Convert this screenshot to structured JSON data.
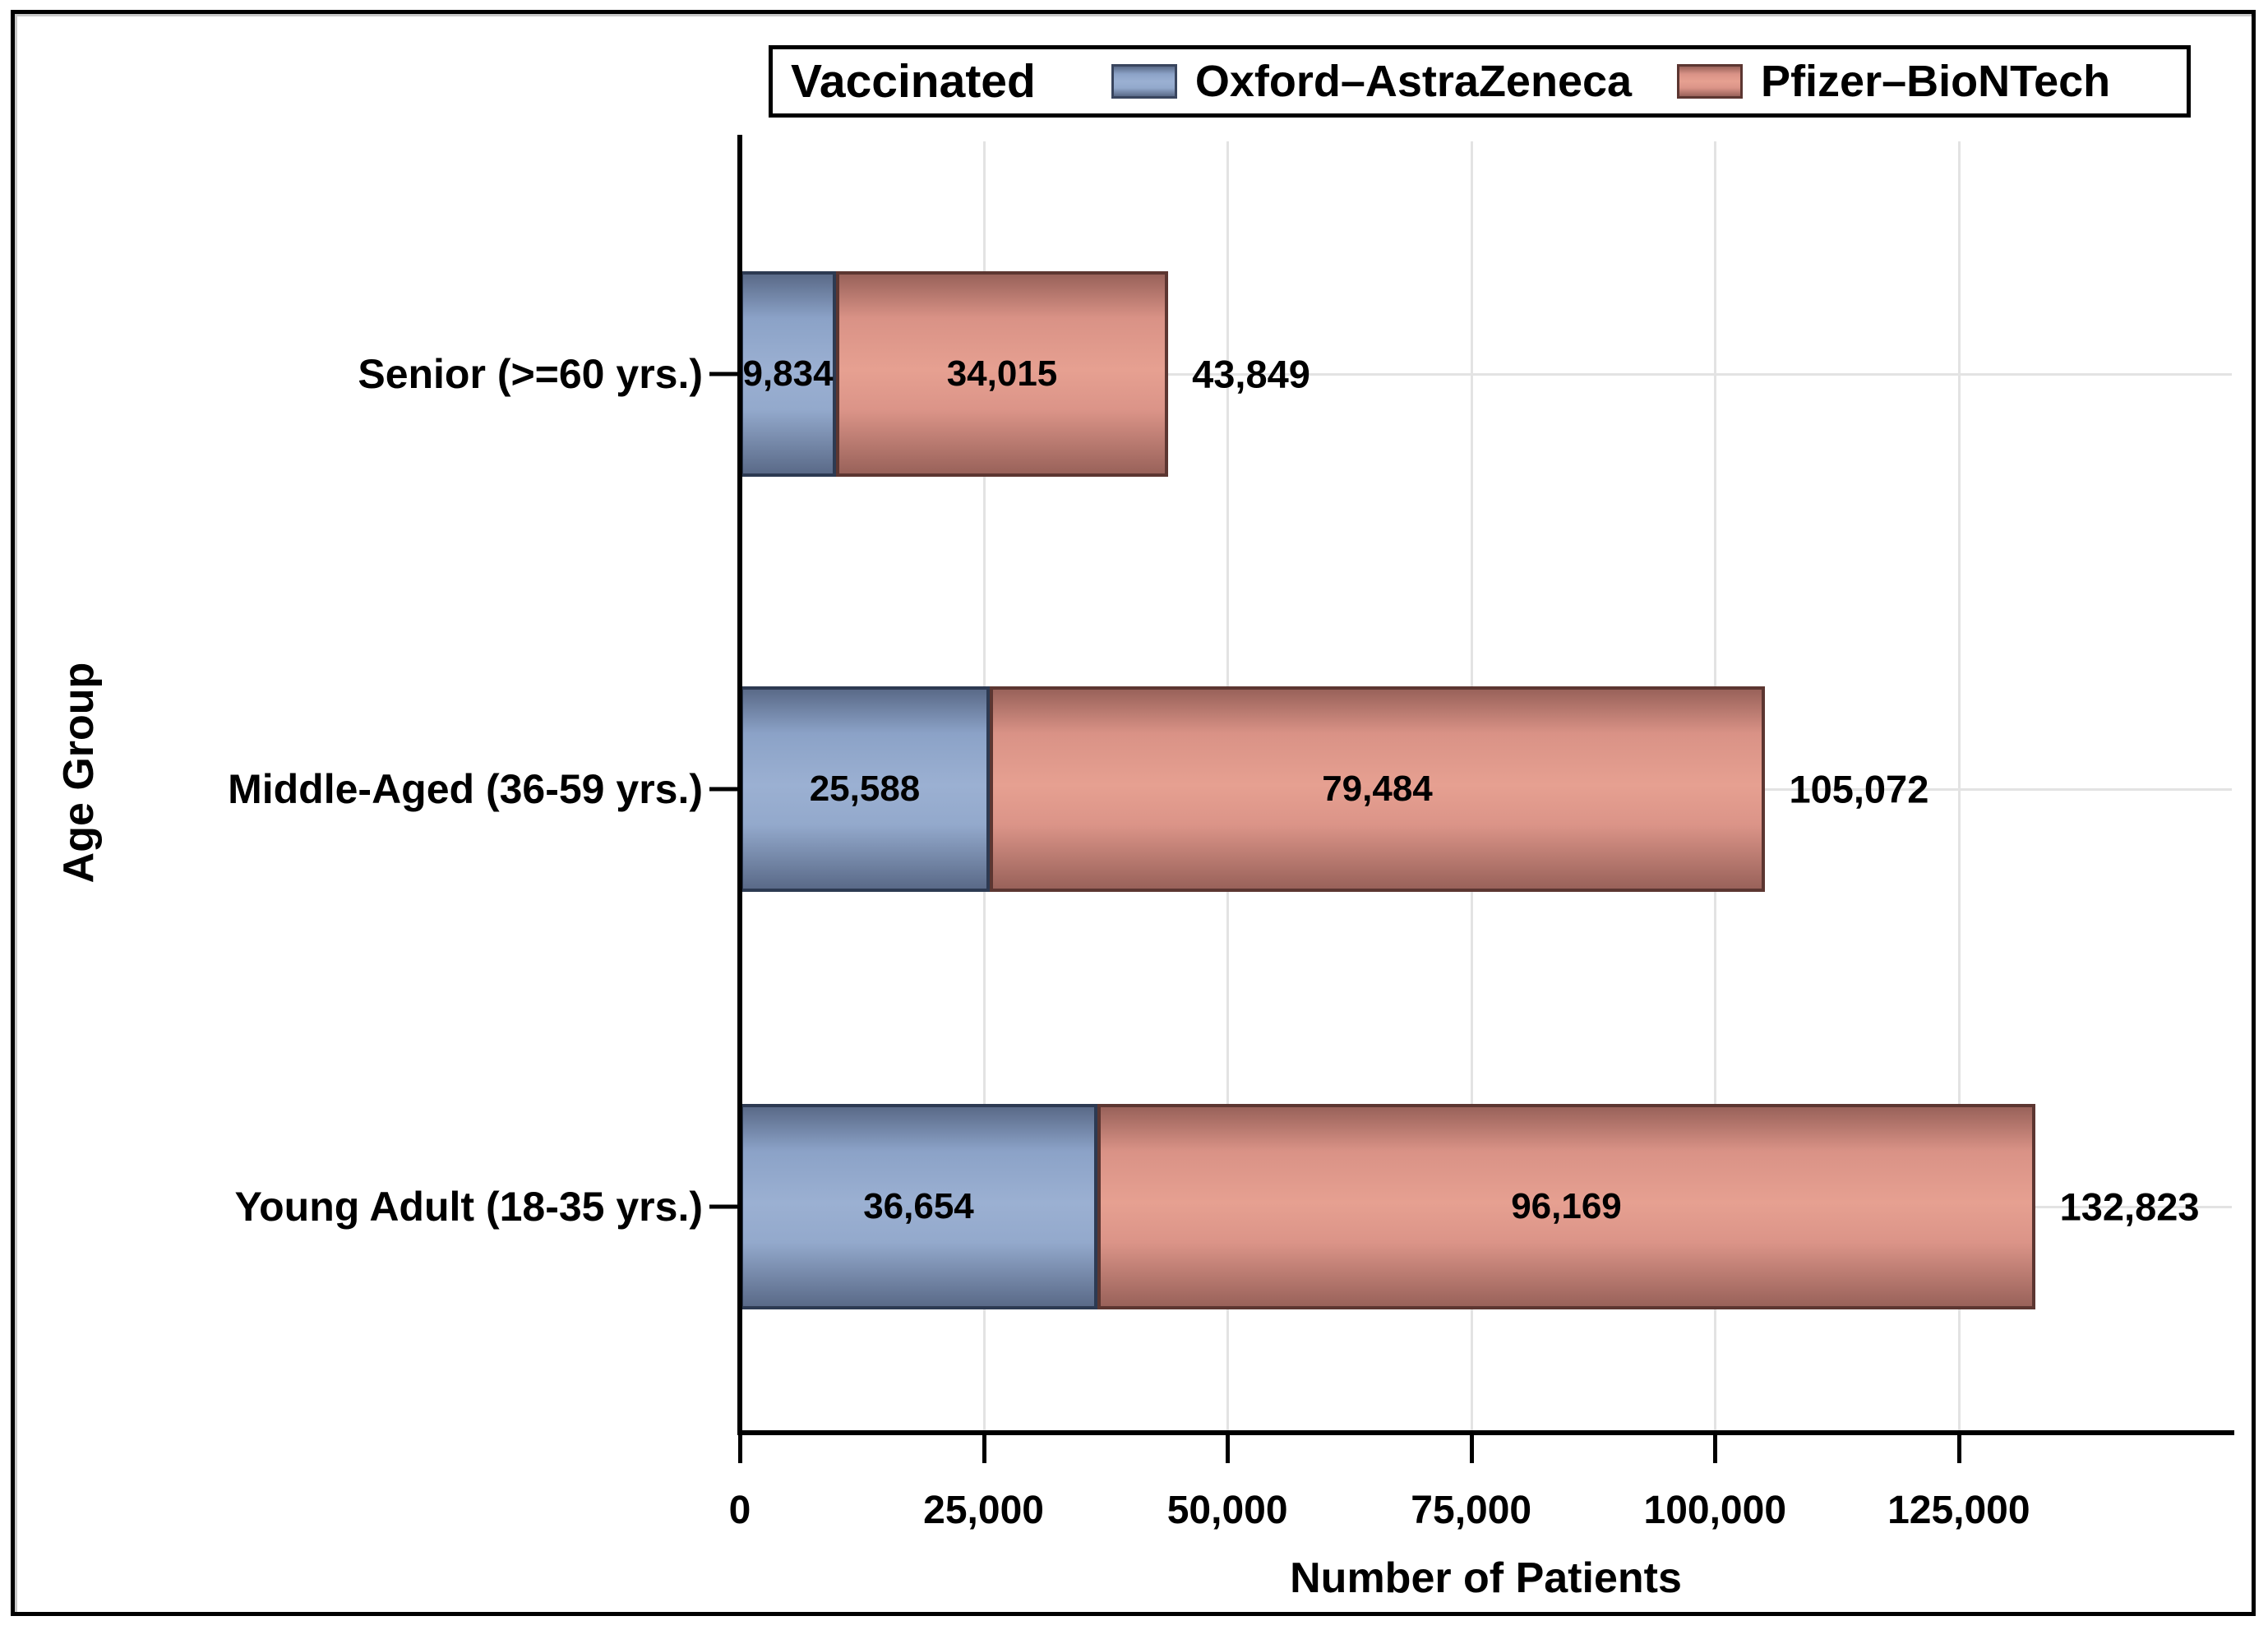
{
  "chart_data": {
    "type": "bar",
    "orientation": "horizontal",
    "stacked": true,
    "legend_title": "Vaccinated",
    "legend_position": "top",
    "categories": [
      "Senior (>=60 yrs.)",
      "Middle-Aged (36-59 yrs.)",
      "Young Adult (18-35 yrs.)"
    ],
    "series": [
      {
        "name": "Oxford–AstraZeneca",
        "values": [
          9834,
          25588,
          36654
        ],
        "color_center": "#9bb0d2",
        "color_edge": "#5a6a88",
        "border_color": "#2d3a52"
      },
      {
        "name": "Pfizer–BioNTech",
        "values": [
          34015,
          79484,
          96169
        ],
        "color_center": "#e6a091",
        "color_edge": "#99625a",
        "border_color": "#5c3631"
      }
    ],
    "segment_labels": [
      [
        "9,834",
        "34,015"
      ],
      [
        "25,588",
        "79,484"
      ],
      [
        "36,654",
        "96,169"
      ]
    ],
    "totals": [
      43849,
      105072,
      132823
    ],
    "total_labels": [
      "43,849",
      "105,072",
      "132,823"
    ],
    "xlabel": "Number of Patients",
    "ylabel": "Age Group",
    "x_ticks": [
      0,
      25000,
      50000,
      75000,
      100000,
      125000
    ],
    "x_tick_labels": [
      "0",
      "25,000",
      "50,000",
      "75,000",
      "100,000",
      "125,000"
    ],
    "xlim": [
      0,
      153000
    ],
    "grid": true,
    "grid_color": "#e3e3e3",
    "axis_color": "#000000",
    "text_color": "#000000"
  }
}
